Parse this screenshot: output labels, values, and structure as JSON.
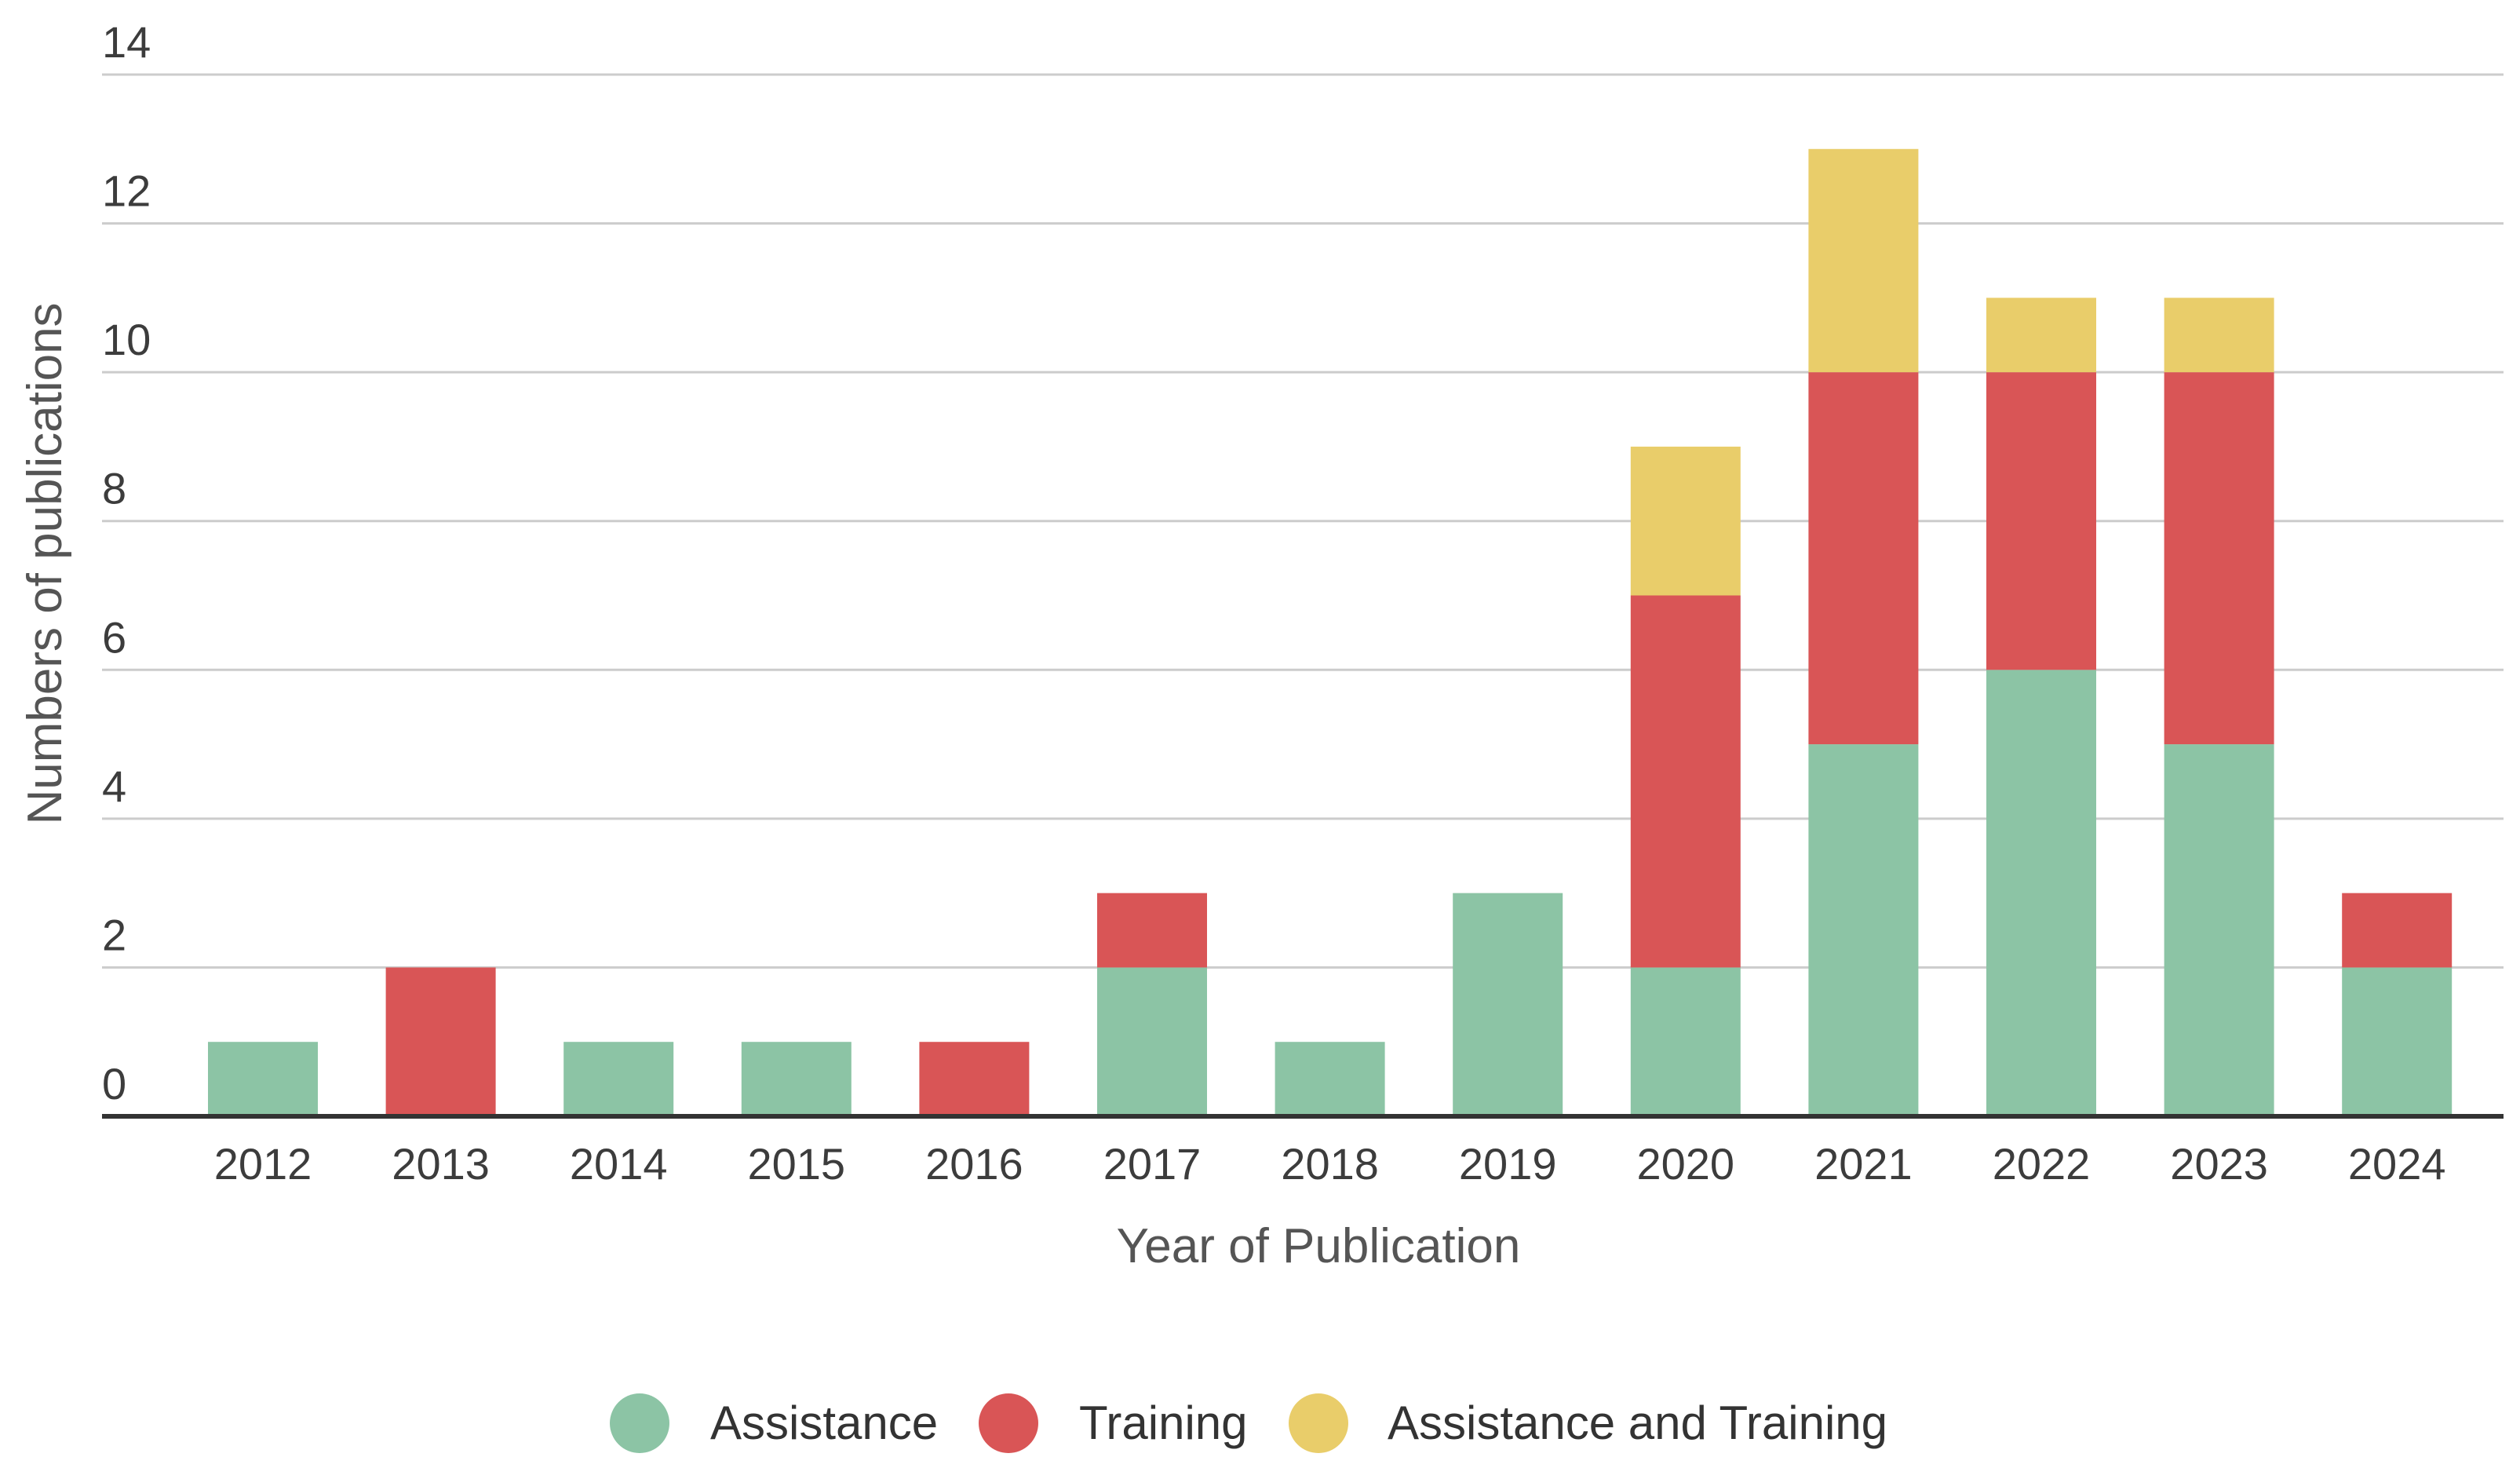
{
  "chart_data": {
    "type": "bar",
    "stacked": true,
    "categories": [
      "2012",
      "2013",
      "2014",
      "2015",
      "2016",
      "2017",
      "2018",
      "2019",
      "2020",
      "2021",
      "2022",
      "2023",
      "2024"
    ],
    "series": [
      {
        "name": "Assistance",
        "color": "#8cc4a5",
        "values": [
          1,
          0,
          1,
          1,
          0,
          2,
          1,
          3,
          2,
          5,
          6,
          5,
          2
        ]
      },
      {
        "name": "Training",
        "color": "#d95556",
        "values": [
          0,
          2,
          0,
          0,
          1,
          1,
          0,
          0,
          5,
          5,
          4,
          5,
          1
        ]
      },
      {
        "name": "Assistance and Training",
        "color": "#e9cd6a",
        "values": [
          0,
          0,
          0,
          0,
          0,
          0,
          0,
          0,
          2,
          3,
          1,
          1,
          0
        ]
      }
    ],
    "title": "",
    "xlabel": "Year of Publication",
    "ylabel": "Numbers of publications",
    "ylim": [
      0,
      14
    ],
    "yticks": [
      "0",
      "2",
      "4",
      "6",
      "8",
      "10",
      "12",
      "14"
    ],
    "grid": true,
    "legend": "bottom-center"
  }
}
